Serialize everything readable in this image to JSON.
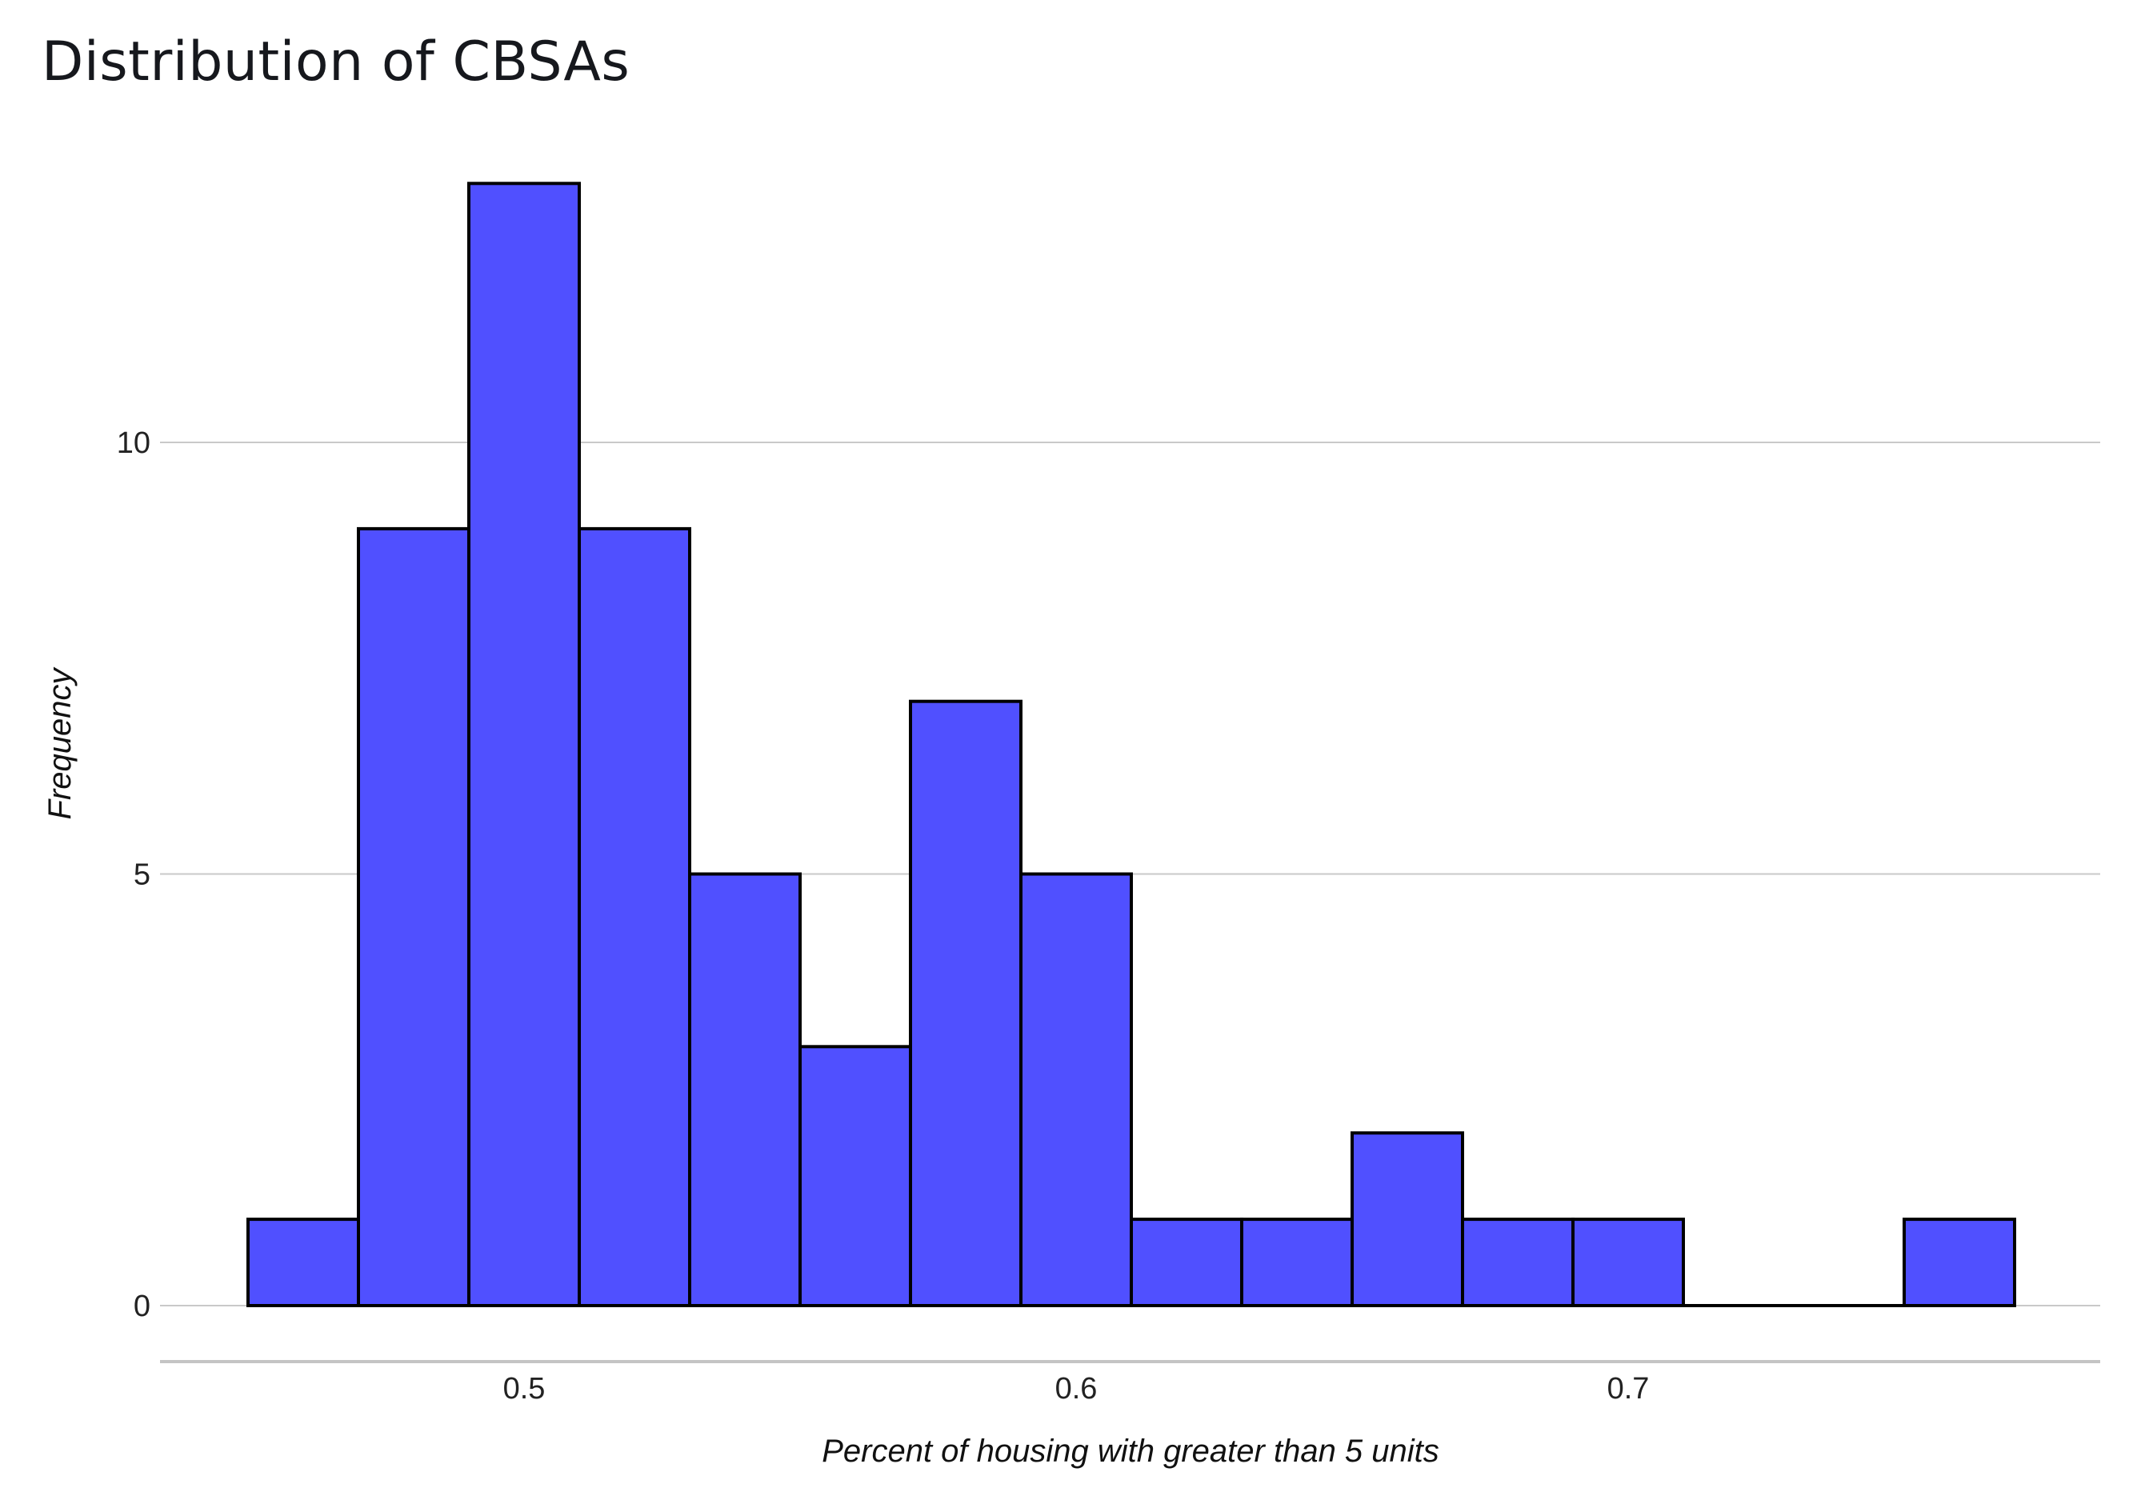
{
  "chart_data": {
    "type": "bar",
    "title": "Distribution of CBSAs",
    "xlabel": "Percent of housing with greater than 5 units",
    "ylabel": "Frequency",
    "bin_edges": [
      0.45,
      0.47,
      0.49,
      0.51,
      0.53,
      0.55,
      0.57,
      0.59,
      0.61,
      0.63,
      0.65,
      0.67,
      0.69,
      0.71,
      0.73,
      0.75,
      0.77
    ],
    "values": [
      1,
      9,
      13,
      9,
      5,
      3,
      7,
      5,
      1,
      1,
      2,
      1,
      1,
      0,
      0,
      1
    ],
    "xlim": [
      0.4,
      0.785
    ],
    "ylim": [
      0,
      13.5
    ],
    "x_ticks": [
      {
        "value": 0.5,
        "label": "0.5"
      },
      {
        "value": 0.6,
        "label": "0.6"
      },
      {
        "value": 0.7,
        "label": "0.7"
      }
    ],
    "y_ticks": [
      {
        "value": 0,
        "label": "0"
      },
      {
        "value": 5,
        "label": "5"
      },
      {
        "value": 10,
        "label": "10"
      }
    ],
    "grid": "horizontal",
    "colors": {
      "bar_fill": "#5050ff",
      "bar_edge": "#000000",
      "grid": "#c9c9c9"
    }
  }
}
